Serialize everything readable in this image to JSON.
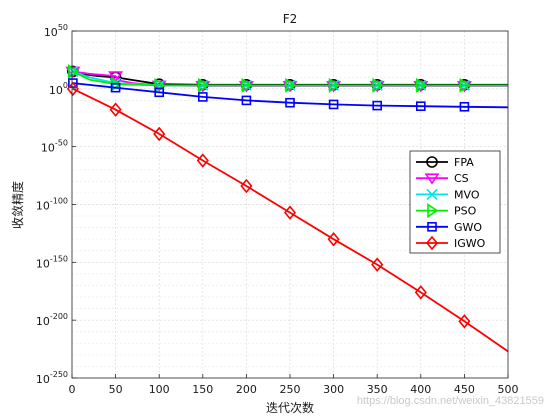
{
  "chart_data": {
    "type": "line",
    "title": "F2",
    "xlabel": "迭代次数",
    "ylabel": "收敛精度",
    "xlim": [
      0,
      500
    ],
    "ylim_exponent": [
      -250,
      50
    ],
    "yscale": "log",
    "x_ticks": [
      "0",
      "50",
      "100",
      "150",
      "200",
      "250",
      "300",
      "350",
      "400",
      "450",
      "500"
    ],
    "y_tick_base": "10",
    "y_tick_exponents": [
      "50",
      "0",
      "-50",
      "-100",
      "-150",
      "-200",
      "-250"
    ],
    "grid": true,
    "legend_position": "right",
    "series": [
      {
        "name": "FPA",
        "color": "#000000",
        "marker": "circle",
        "points": [
          [
            1,
            15
          ],
          [
            10,
            13
          ],
          [
            30,
            11
          ],
          [
            50,
            10
          ],
          [
            100,
            4
          ],
          [
            150,
            3.5
          ],
          [
            200,
            3.5
          ],
          [
            250,
            3.5
          ],
          [
            300,
            3.5
          ],
          [
            350,
            3.5
          ],
          [
            400,
            3.5
          ],
          [
            450,
            3.5
          ],
          [
            500,
            3.5
          ]
        ]
      },
      {
        "name": "CS",
        "color": "#ff00ff",
        "marker": "triangle-down",
        "points": [
          [
            1,
            15
          ],
          [
            20,
            13
          ],
          [
            50,
            11
          ],
          [
            55,
            7
          ],
          [
            70,
            5
          ],
          [
            100,
            3
          ],
          [
            150,
            2.5
          ],
          [
            200,
            2.5
          ],
          [
            250,
            2.5
          ],
          [
            300,
            2.5
          ],
          [
            350,
            2.5
          ],
          [
            400,
            2.5
          ],
          [
            450,
            2.5
          ],
          [
            500,
            2.5
          ]
        ]
      },
      {
        "name": "MVO",
        "color": "#00e5e5",
        "marker": "x",
        "points": [
          [
            1,
            15
          ],
          [
            20,
            10
          ],
          [
            50,
            5
          ],
          [
            100,
            3
          ],
          [
            150,
            3
          ],
          [
            200,
            3
          ],
          [
            250,
            3
          ],
          [
            300,
            3
          ],
          [
            350,
            3
          ],
          [
            400,
            3
          ],
          [
            450,
            3
          ],
          [
            500,
            3
          ]
        ]
      },
      {
        "name": "PSO",
        "color": "#00ee00",
        "marker": "triangle-right",
        "points": [
          [
            1,
            15
          ],
          [
            20,
            8
          ],
          [
            50,
            4
          ],
          [
            100,
            3
          ],
          [
            150,
            3
          ],
          [
            200,
            3
          ],
          [
            250,
            3
          ],
          [
            300,
            3
          ],
          [
            350,
            3
          ],
          [
            400,
            3
          ],
          [
            450,
            3
          ],
          [
            500,
            3
          ]
        ]
      },
      {
        "name": "GWO",
        "color": "#0000ff",
        "marker": "square",
        "points": [
          [
            1,
            5
          ],
          [
            50,
            1
          ],
          [
            100,
            -3
          ],
          [
            150,
            -7
          ],
          [
            200,
            -10
          ],
          [
            250,
            -12
          ],
          [
            300,
            -13.5
          ],
          [
            350,
            -14.5
          ],
          [
            400,
            -15
          ],
          [
            450,
            -15.5
          ],
          [
            500,
            -16
          ]
        ]
      },
      {
        "name": "IGWO",
        "color": "#ff0000",
        "marker": "diamond",
        "points": [
          [
            1,
            0
          ],
          [
            50,
            -18
          ],
          [
            100,
            -39
          ],
          [
            150,
            -62
          ],
          [
            200,
            -84
          ],
          [
            250,
            -107
          ],
          [
            300,
            -130
          ],
          [
            350,
            -152
          ],
          [
            400,
            -176
          ],
          [
            450,
            -201
          ],
          [
            500,
            -227
          ]
        ]
      }
    ]
  },
  "watermark": "https://blog.csdn.net/weixin_43821559"
}
